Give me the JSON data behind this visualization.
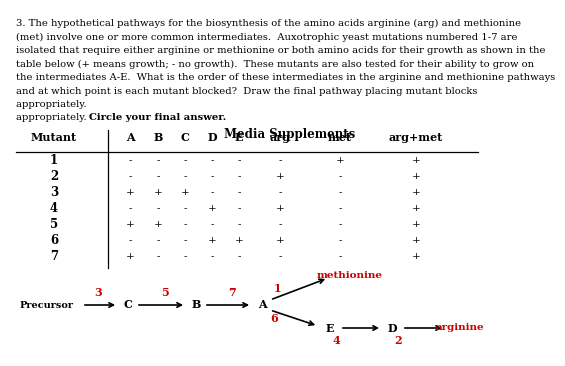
{
  "para_lines": [
    "3. The hypothetical pathways for the biosynthesis of the amino acids arginine (arg) and methionine",
    "(met) involve one or more common intermediates.  Auxotrophic yeast mutations numbered 1-7 are",
    "isolated that require either arginine or methionine or both amino acids for their growth as shown in the",
    "table below (+ means growth; - no growth).  These mutants are also tested for their ability to grow on",
    "the intermediates A-E.  What is the order of these intermediates in the arginine and methionine pathways",
    "and at which point is each mutant blocked?  Draw the final pathway placing mutant blocks",
    "appropriately.  "
  ],
  "para_bold": "Circle your final answer.",
  "table_title": "Media Supplements",
  "col_headers": [
    "Mutant",
    "A",
    "B",
    "C",
    "D",
    "E",
    "arg",
    "met",
    "arg+met"
  ],
  "rows": [
    [
      "1",
      "-",
      "-",
      "-",
      "-",
      "-",
      "-",
      "+",
      "+"
    ],
    [
      "2",
      "-",
      "-",
      "-",
      "-",
      "-",
      "+",
      "-",
      "+"
    ],
    [
      "3",
      "+",
      "+",
      "+",
      "-",
      "-",
      "-",
      "-",
      "+"
    ],
    [
      "4",
      "-",
      "-",
      "-",
      "+",
      "-",
      "+",
      "-",
      "+"
    ],
    [
      "5",
      "+",
      "+",
      "-",
      "-",
      "-",
      "-",
      "-",
      "+"
    ],
    [
      "6",
      "-",
      "-",
      "-",
      "+",
      "+",
      "+",
      "-",
      "+"
    ],
    [
      "7",
      "+",
      "-",
      "-",
      "-",
      "-",
      "-",
      "-",
      "+"
    ]
  ],
  "text_color": "#000000",
  "red_color": "#cc0000",
  "arrow_color": "#000000",
  "bg_color": "#ffffff"
}
